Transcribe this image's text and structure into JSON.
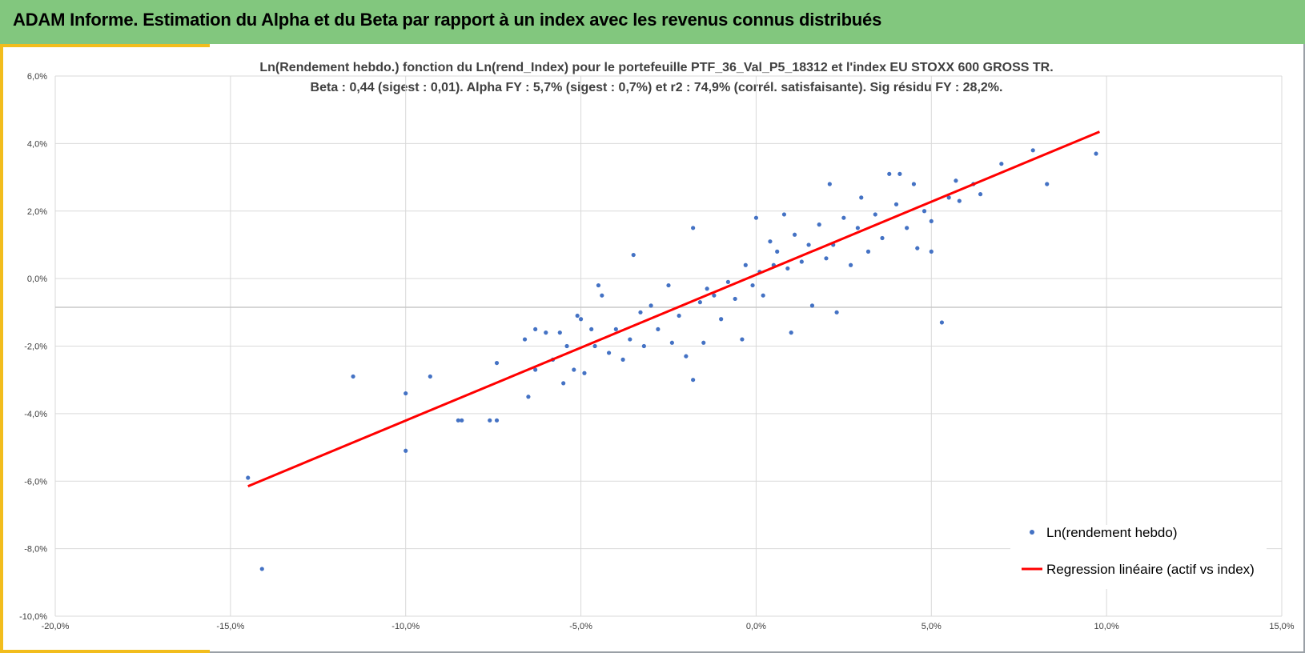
{
  "header": {
    "title": "ADAM Informe. Estimation du Alpha et du Beta par rapport à un index avec les revenus connus distribués",
    "bg_color": "#82c77e",
    "accent_color": "#f2bd1d"
  },
  "chart_data": {
    "type": "scatter",
    "title_line1": "Ln(Rendement hebdo.) fonction du Ln(rend_Index) pour le portefeuille PTF_36_Val_P5_18312 et l'index EU STOXX 600 GROSS TR.",
    "title_line2": "Beta : 0,44 (sigest : 0,01).  Alpha FY : 5,7% (sigest : 0,7%) et r2 : 74,9% (corrél. satisfaisante). Sig résidu FY : 28,2%.",
    "xlim": [
      -20,
      15
    ],
    "ylim": [
      -10,
      6
    ],
    "x_ticks": [
      -20,
      -15,
      -10,
      -5,
      0,
      5,
      10,
      15
    ],
    "y_ticks": [
      -10,
      -8,
      -6,
      -4,
      -2,
      0,
      2,
      4,
      6
    ],
    "x_tick_labels": [
      "-20,0%",
      "-15,0%",
      "-10,0%",
      "-5,0%",
      "0,0%",
      "5,0%",
      "10,0%",
      "15,0%"
    ],
    "y_tick_labels": [
      "-10,0%",
      "-8,0%",
      "-6,0%",
      "-4,0%",
      "-2,0%",
      "0,0%",
      "2,0%",
      "4,0%",
      "6,0%"
    ],
    "grid": true,
    "legend_position": "bottom-right",
    "series": [
      {
        "name": "Ln(rendement hebdo)",
        "type": "scatter",
        "color": "#4472c4",
        "points": [
          [
            -14.5,
            -5.9
          ],
          [
            -14.1,
            -8.6
          ],
          [
            -11.5,
            -2.9
          ],
          [
            -10.0,
            -3.4
          ],
          [
            -10.0,
            -5.1
          ],
          [
            -9.3,
            -2.9
          ],
          [
            -8.5,
            -4.2
          ],
          [
            -8.4,
            -4.2
          ],
          [
            -7.6,
            -4.2
          ],
          [
            -7.4,
            -4.2
          ],
          [
            -7.4,
            -2.5
          ],
          [
            -6.6,
            -1.8
          ],
          [
            -6.5,
            -3.5
          ],
          [
            -6.3,
            -1.5
          ],
          [
            -6.3,
            -2.7
          ],
          [
            -6.0,
            -1.6
          ],
          [
            -5.8,
            -2.4
          ],
          [
            -5.6,
            -1.6
          ],
          [
            -5.5,
            -3.1
          ],
          [
            -5.4,
            -2.0
          ],
          [
            -5.2,
            -2.7
          ],
          [
            -5.1,
            -1.1
          ],
          [
            -5.0,
            -1.2
          ],
          [
            -4.9,
            -2.8
          ],
          [
            -4.7,
            -1.5
          ],
          [
            -4.6,
            -2.0
          ],
          [
            -4.5,
            -0.2
          ],
          [
            -4.4,
            -0.5
          ],
          [
            -4.2,
            -2.2
          ],
          [
            -4.0,
            -1.5
          ],
          [
            -3.8,
            -2.4
          ],
          [
            -3.6,
            -1.8
          ],
          [
            -3.5,
            0.7
          ],
          [
            -3.3,
            -1.0
          ],
          [
            -3.2,
            -2.0
          ],
          [
            -3.0,
            -0.8
          ],
          [
            -2.8,
            -1.5
          ],
          [
            -2.5,
            -0.2
          ],
          [
            -2.4,
            -1.9
          ],
          [
            -2.2,
            -1.1
          ],
          [
            -2.0,
            -2.3
          ],
          [
            -1.8,
            1.5
          ],
          [
            -1.8,
            -3.0
          ],
          [
            -1.6,
            -0.7
          ],
          [
            -1.5,
            -1.9
          ],
          [
            -1.4,
            -0.3
          ],
          [
            -1.2,
            -0.5
          ],
          [
            -1.0,
            -1.2
          ],
          [
            -0.8,
            -0.1
          ],
          [
            -0.6,
            -0.6
          ],
          [
            -0.4,
            -1.8
          ],
          [
            -0.3,
            0.4
          ],
          [
            -0.1,
            -0.2
          ],
          [
            0.0,
            1.8
          ],
          [
            0.1,
            0.2
          ],
          [
            0.2,
            -0.5
          ],
          [
            0.4,
            1.1
          ],
          [
            0.5,
            0.4
          ],
          [
            0.6,
            0.8
          ],
          [
            0.8,
            1.9
          ],
          [
            0.9,
            0.3
          ],
          [
            1.0,
            -1.6
          ],
          [
            1.1,
            1.3
          ],
          [
            1.3,
            0.5
          ],
          [
            1.5,
            1.0
          ],
          [
            1.6,
            -0.8
          ],
          [
            1.8,
            1.6
          ],
          [
            2.0,
            0.6
          ],
          [
            2.1,
            2.8
          ],
          [
            2.2,
            1.0
          ],
          [
            2.3,
            -1.0
          ],
          [
            2.5,
            1.8
          ],
          [
            2.7,
            0.4
          ],
          [
            2.9,
            1.5
          ],
          [
            3.0,
            2.4
          ],
          [
            3.2,
            0.8
          ],
          [
            3.4,
            1.9
          ],
          [
            3.6,
            1.2
          ],
          [
            3.8,
            3.1
          ],
          [
            4.0,
            2.2
          ],
          [
            4.1,
            3.1
          ],
          [
            4.3,
            1.5
          ],
          [
            4.5,
            2.8
          ],
          [
            4.6,
            0.9
          ],
          [
            4.8,
            2.0
          ],
          [
            5.0,
            1.7
          ],
          [
            5.0,
            0.8
          ],
          [
            5.3,
            -1.3
          ],
          [
            5.5,
            2.4
          ],
          [
            5.7,
            2.9
          ],
          [
            5.8,
            2.3
          ],
          [
            6.2,
            2.8
          ],
          [
            6.4,
            2.5
          ],
          [
            7.0,
            3.4
          ],
          [
            7.9,
            3.8
          ],
          [
            8.3,
            2.8
          ],
          [
            9.7,
            3.7
          ]
        ]
      },
      {
        "name": "Regression linéaire (actif vs index)",
        "type": "line",
        "color": "#ff0000",
        "points": [
          [
            -14.5,
            -6.15
          ],
          [
            9.8,
            4.35
          ]
        ]
      }
    ]
  }
}
